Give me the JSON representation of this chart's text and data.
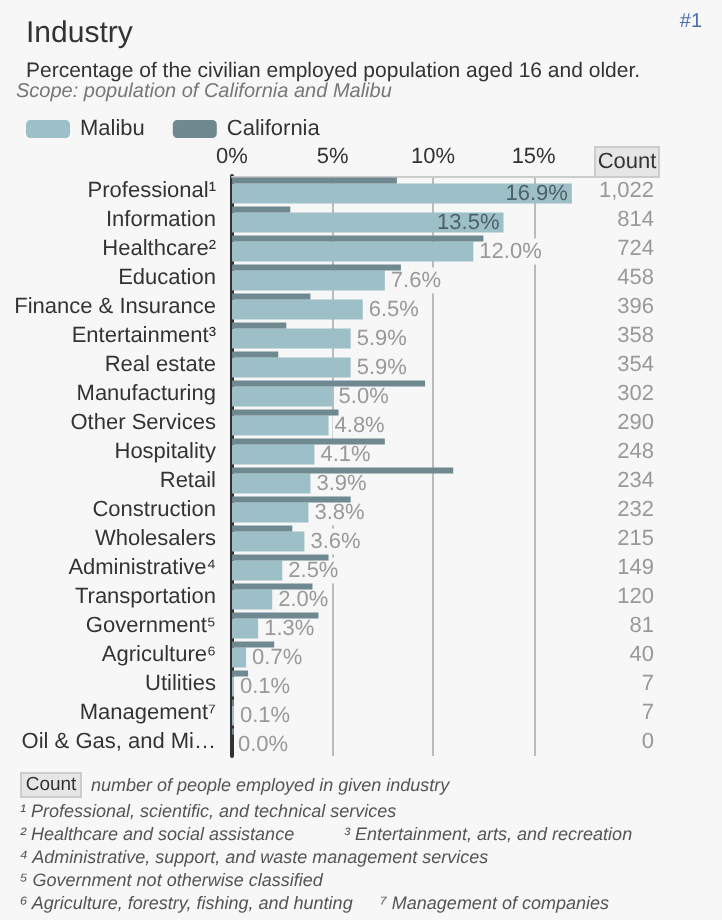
{
  "chart_data": {
    "type": "bar",
    "orientation": "horizontal",
    "title": "Industry",
    "subtitle": "Percentage of the civilian employed population aged 16 and older.",
    "categories": [
      "Professional¹",
      "Information",
      "Healthcare²",
      "Education",
      "Finance & Insurance",
      "Entertainment³",
      "Real estate",
      "Manufacturing",
      "Other Services",
      "Hospitality",
      "Retail",
      "Construction",
      "Wholesalers",
      "Administrative⁴",
      "Transportation",
      "Government⁵",
      "Agriculture⁶",
      "Utilities",
      "Management⁷",
      "Oil & Gas, and Mi…"
    ],
    "series": [
      {
        "name": "Malibu",
        "color": "#9dbfc7",
        "values": [
          16.9,
          13.5,
          12.0,
          7.6,
          6.5,
          5.9,
          5.9,
          5.0,
          4.8,
          4.1,
          3.9,
          3.8,
          3.6,
          2.5,
          2.0,
          1.3,
          0.7,
          0.1,
          0.1,
          0.0
        ],
        "value_labels": [
          "16.9%",
          "13.5%",
          "12.0%",
          "7.6%",
          "6.5%",
          "5.9%",
          "5.9%",
          "5.0%",
          "4.8%",
          "4.1%",
          "3.9%",
          "3.8%",
          "3.6%",
          "2.5%",
          "2.0%",
          "1.3%",
          "0.7%",
          "0.1%",
          "0.1%",
          "0.0%"
        ]
      },
      {
        "name": "California",
        "color": "#6f8990",
        "values": [
          8.2,
          2.9,
          12.5,
          8.4,
          3.9,
          2.7,
          2.3,
          9.6,
          5.3,
          7.6,
          11.0,
          5.9,
          3.0,
          4.8,
          4.0,
          4.3,
          2.1,
          0.8,
          0.1,
          0.1
        ]
      }
    ],
    "xlim": [
      0,
      18
    ],
    "xticks": [
      {
        "value": 0,
        "label": "0%"
      },
      {
        "value": 5,
        "label": "5%"
      },
      {
        "value": 10,
        "label": "10%"
      },
      {
        "value": 15,
        "label": "15%"
      }
    ],
    "grid": "x",
    "legend": "top left",
    "annotations": [
      "#1",
      "Scope: population of California and Malibu",
      "Count",
      "1,022",
      "814",
      "724",
      "458",
      "396",
      "358",
      "354",
      "302",
      "290",
      "248",
      "234",
      "232",
      "215",
      "149",
      "120",
      "81",
      "40",
      "7",
      "7",
      "0",
      "number of people employed in given industry",
      "¹ Professional, scientific, and technical services",
      "² Healthcare and social assistance",
      "³ Entertainment, arts, and recreation",
      "⁴ Administrative, support, and waste management services",
      "⁵ Government not otherwise classified",
      "⁶ Agriculture, forestry, fishing, and hunting",
      "⁷ Management of companies"
    ]
  }
}
